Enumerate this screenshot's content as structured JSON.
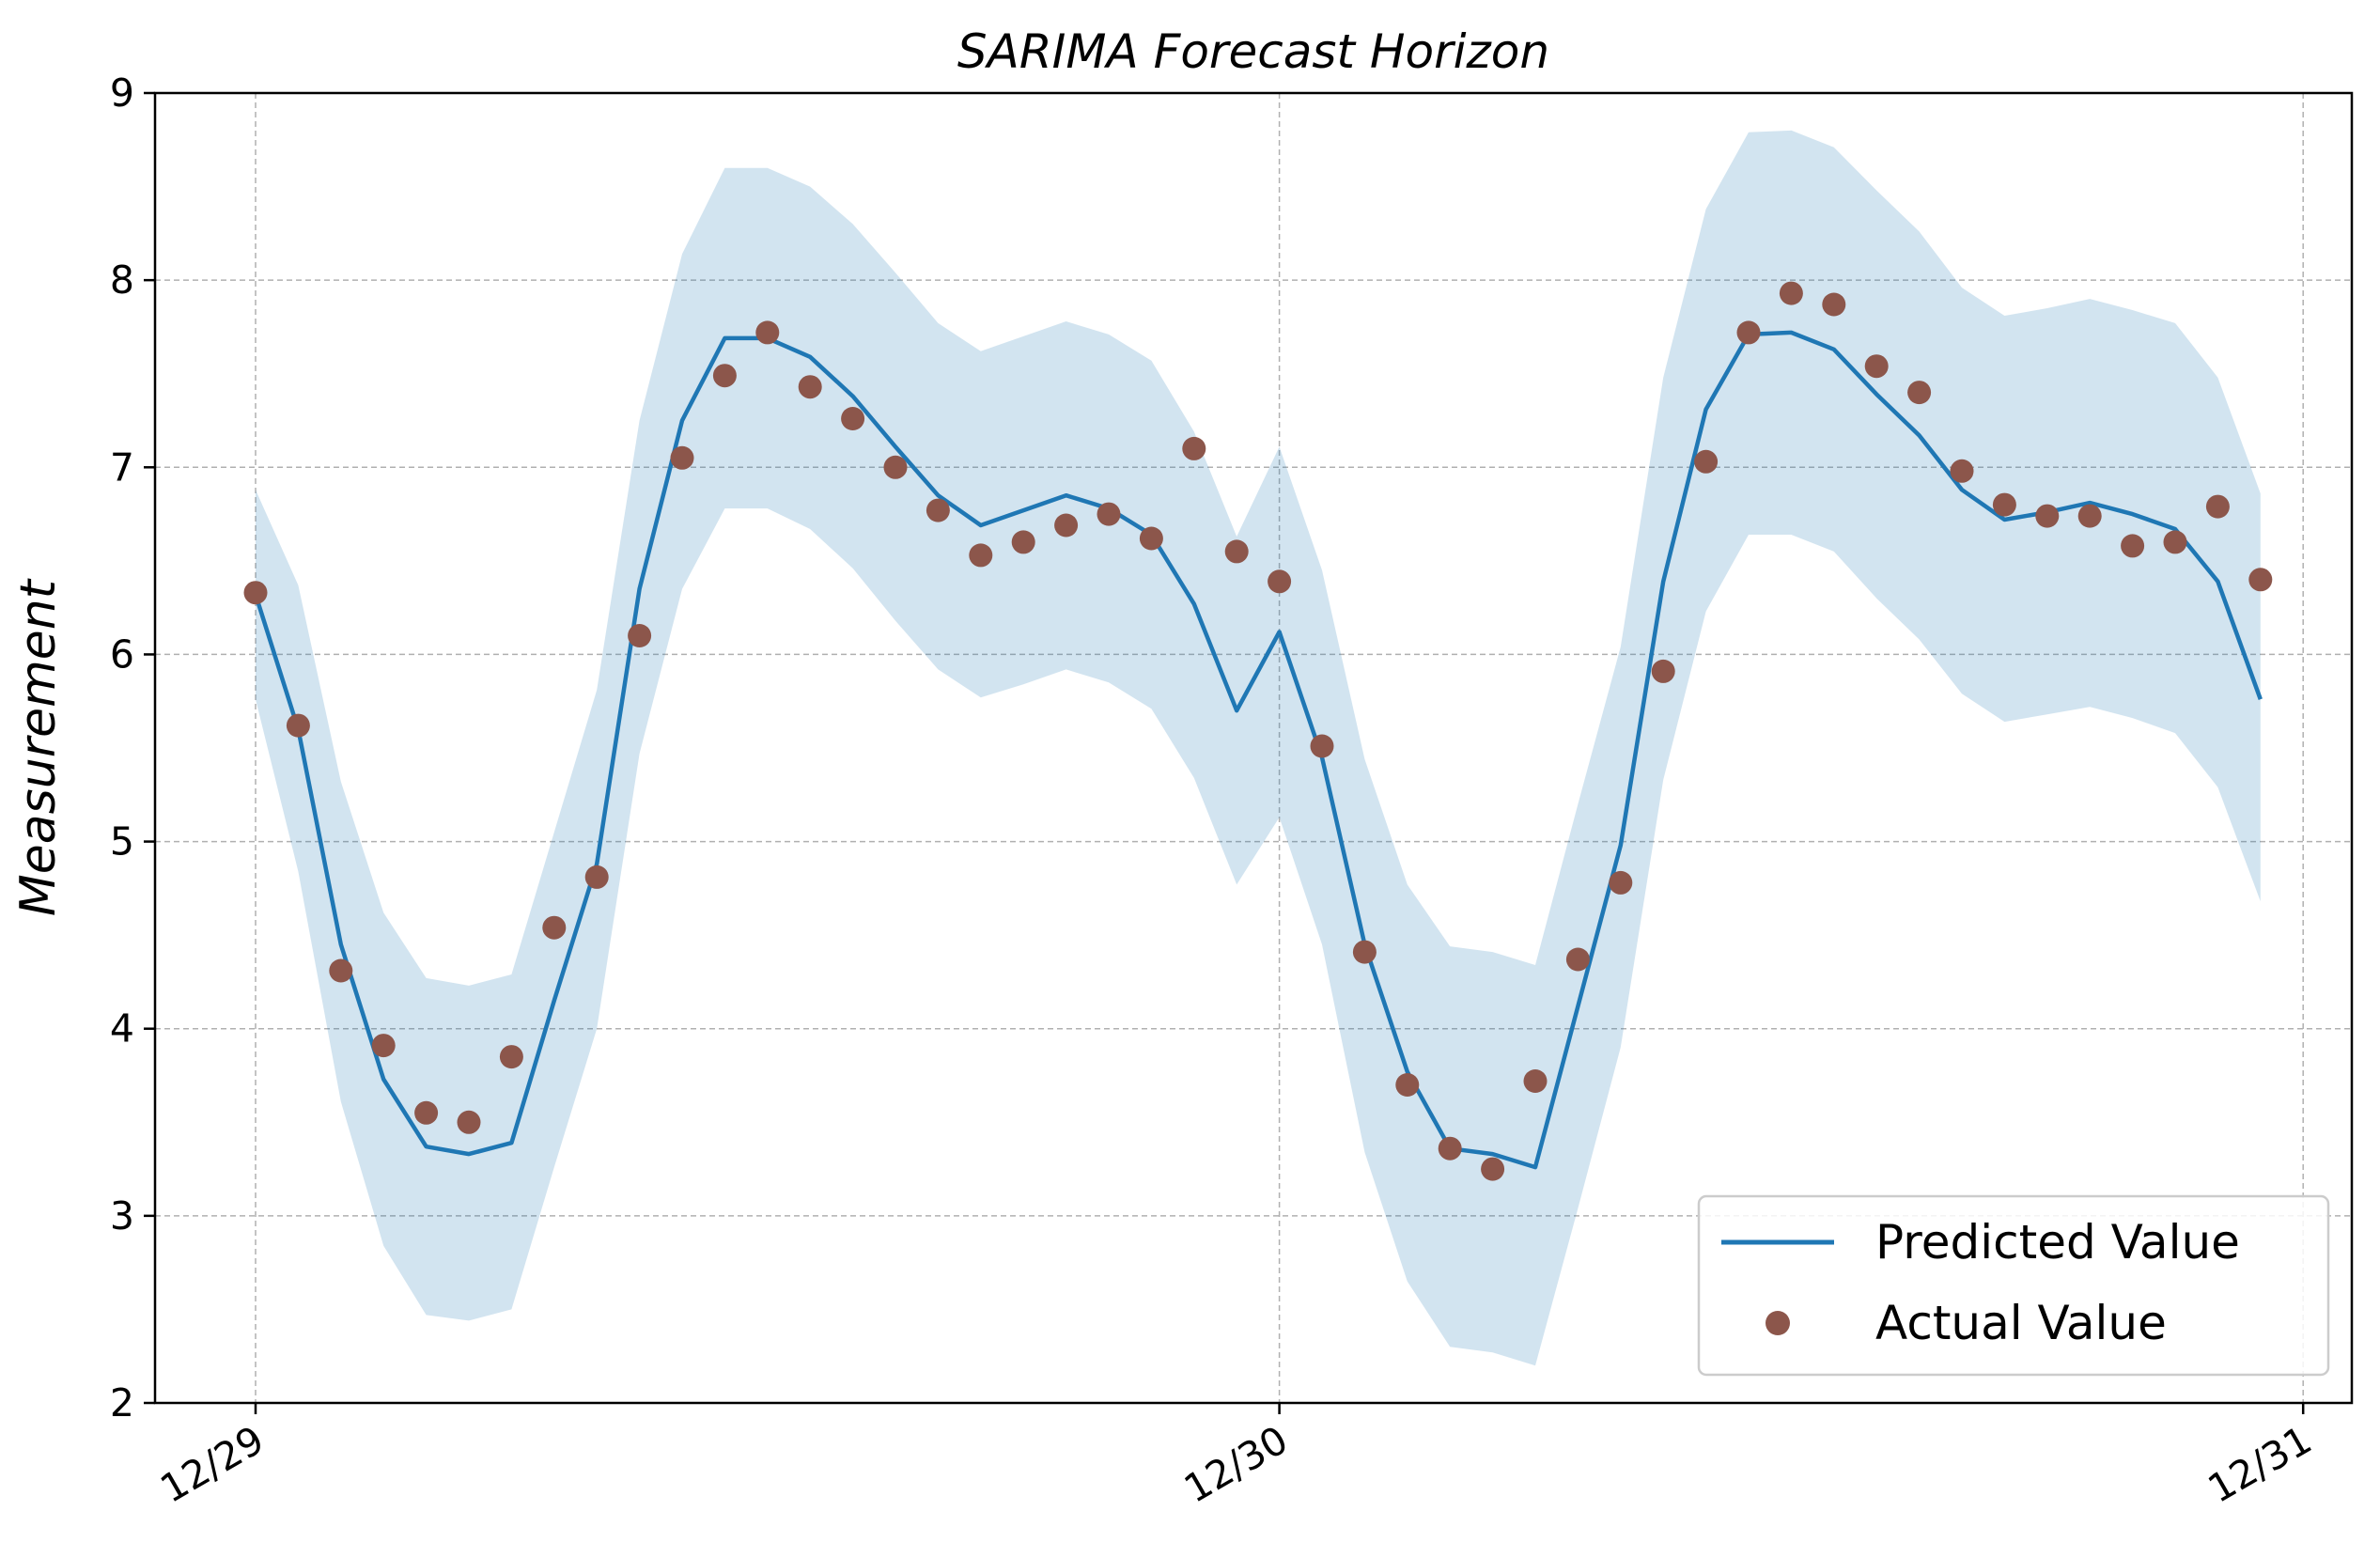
{
  "chart_data": {
    "type": "line",
    "title": "SARIMA Forecast Horizon",
    "xlabel": "",
    "ylabel": "Measurement",
    "x_tick_labels": [
      "12/29",
      "12/30",
      "12/31"
    ],
    "y_ticks": [
      2,
      3,
      4,
      5,
      6,
      7,
      8,
      9
    ],
    "ylim": [
      2,
      9
    ],
    "grid": true,
    "legend_position": "lower right",
    "colors": {
      "predicted": "#1f77b4",
      "actual": "#8c564b",
      "band": "#1f77b4"
    },
    "series": [
      {
        "name": "Predicted Value",
        "kind": "line",
        "values": [
          6.32,
          5.6,
          4.45,
          3.73,
          3.37,
          3.33,
          3.39,
          4.15,
          4.88,
          6.35,
          7.25,
          7.69,
          7.69,
          7.59,
          7.38,
          7.11,
          6.85,
          6.69,
          6.77,
          6.85,
          6.78,
          6.64,
          6.27,
          5.7,
          6.12,
          5.45,
          4.45,
          3.77,
          3.36,
          3.33,
          3.26,
          4.12,
          4.98,
          6.39,
          7.31,
          7.71,
          7.72,
          7.63,
          7.39,
          7.17,
          6.88,
          6.72,
          6.76,
          6.81,
          6.75,
          6.67,
          6.39,
          5.76
        ]
      },
      {
        "name": "Actual Value",
        "kind": "scatter",
        "values": [
          6.33,
          5.62,
          4.31,
          3.91,
          3.55,
          3.5,
          3.85,
          4.54,
          4.81,
          6.1,
          7.05,
          7.49,
          7.72,
          7.43,
          7.26,
          7.0,
          6.77,
          6.53,
          6.6,
          6.69,
          6.75,
          6.62,
          7.1,
          6.55,
          6.39,
          5.51,
          4.41,
          3.7,
          3.36,
          3.25,
          3.72,
          4.37,
          4.78,
          5.91,
          7.03,
          7.72,
          7.93,
          7.87,
          7.54,
          7.4,
          6.98,
          6.8,
          6.74,
          6.74,
          6.58,
          6.6,
          6.79,
          6.4
        ]
      }
    ],
    "band": {
      "upper": [
        6.88,
        6.37,
        5.32,
        4.62,
        4.27,
        4.23,
        4.29,
        5.05,
        5.81,
        7.25,
        8.14,
        8.6,
        8.6,
        8.5,
        8.3,
        8.04,
        7.77,
        7.62,
        7.7,
        7.78,
        7.71,
        7.57,
        7.19,
        6.63,
        7.11,
        6.45,
        5.44,
        4.77,
        4.44,
        4.41,
        4.34,
        5.2,
        6.04,
        7.48,
        8.38,
        8.79,
        8.8,
        8.71,
        8.48,
        8.26,
        7.96,
        7.81,
        7.85,
        7.9,
        7.84,
        7.77,
        7.48,
        6.86
      ],
      "lower": [
        5.76,
        4.84,
        3.61,
        2.84,
        2.47,
        2.44,
        2.5,
        3.26,
        4.0,
        5.47,
        6.35,
        6.78,
        6.78,
        6.67,
        6.46,
        6.18,
        5.92,
        5.77,
        5.84,
        5.92,
        5.85,
        5.71,
        5.34,
        4.77,
        5.13,
        4.45,
        3.34,
        2.65,
        2.3,
        2.27,
        2.2,
        3.04,
        3.9,
        5.33,
        6.23,
        6.64,
        6.64,
        6.55,
        6.3,
        6.08,
        5.79,
        5.64,
        5.68,
        5.72,
        5.66,
        5.58,
        5.29,
        4.68
      ]
    }
  }
}
